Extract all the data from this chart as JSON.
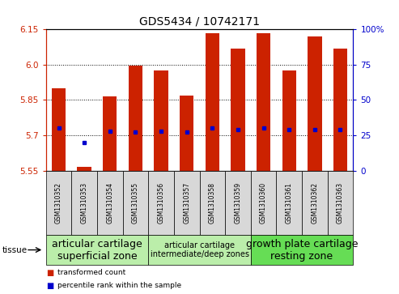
{
  "title": "GDS5434 / 10742171",
  "samples": [
    "GSM1310352",
    "GSM1310353",
    "GSM1310354",
    "GSM1310355",
    "GSM1310356",
    "GSM1310357",
    "GSM1310358",
    "GSM1310359",
    "GSM1310360",
    "GSM1310361",
    "GSM1310362",
    "GSM1310363"
  ],
  "transformed_counts": [
    5.9,
    5.565,
    5.865,
    5.995,
    5.975,
    5.87,
    6.135,
    6.07,
    6.135,
    5.975,
    6.12,
    6.07
  ],
  "percentile_ranks": [
    30,
    20,
    28,
    27,
    28,
    27,
    30,
    29,
    30,
    29,
    29,
    29
  ],
  "ylim_left": [
    5.55,
    6.15
  ],
  "ylim_right": [
    0,
    100
  ],
  "yticks_left": [
    5.55,
    5.7,
    5.85,
    6.0,
    6.15
  ],
  "yticks_right": [
    0,
    25,
    50,
    75,
    100
  ],
  "bar_color": "#cc2200",
  "dot_color": "#0000cc",
  "groups": [
    {
      "label": "articular cartilage\nsuperficial zone",
      "start": 0,
      "end": 3,
      "color": "#bbeeaa",
      "fontsize": 9
    },
    {
      "label": "articular cartilage\nintermediate/deep zones",
      "start": 4,
      "end": 7,
      "color": "#bbeeaa",
      "fontsize": 7
    },
    {
      "label": "growth plate cartilage\nresting zone",
      "start": 8,
      "end": 11,
      "color": "#66dd55",
      "fontsize": 9
    }
  ],
  "tissue_label": "tissue",
  "legend_transformed": "transformed count",
  "legend_percentile": "percentile rank within the sample",
  "bar_width": 0.55,
  "baseline": 5.55,
  "grid_lines": [
    5.7,
    5.85,
    6.0
  ],
  "sample_cell_color": "#d8d8d8"
}
